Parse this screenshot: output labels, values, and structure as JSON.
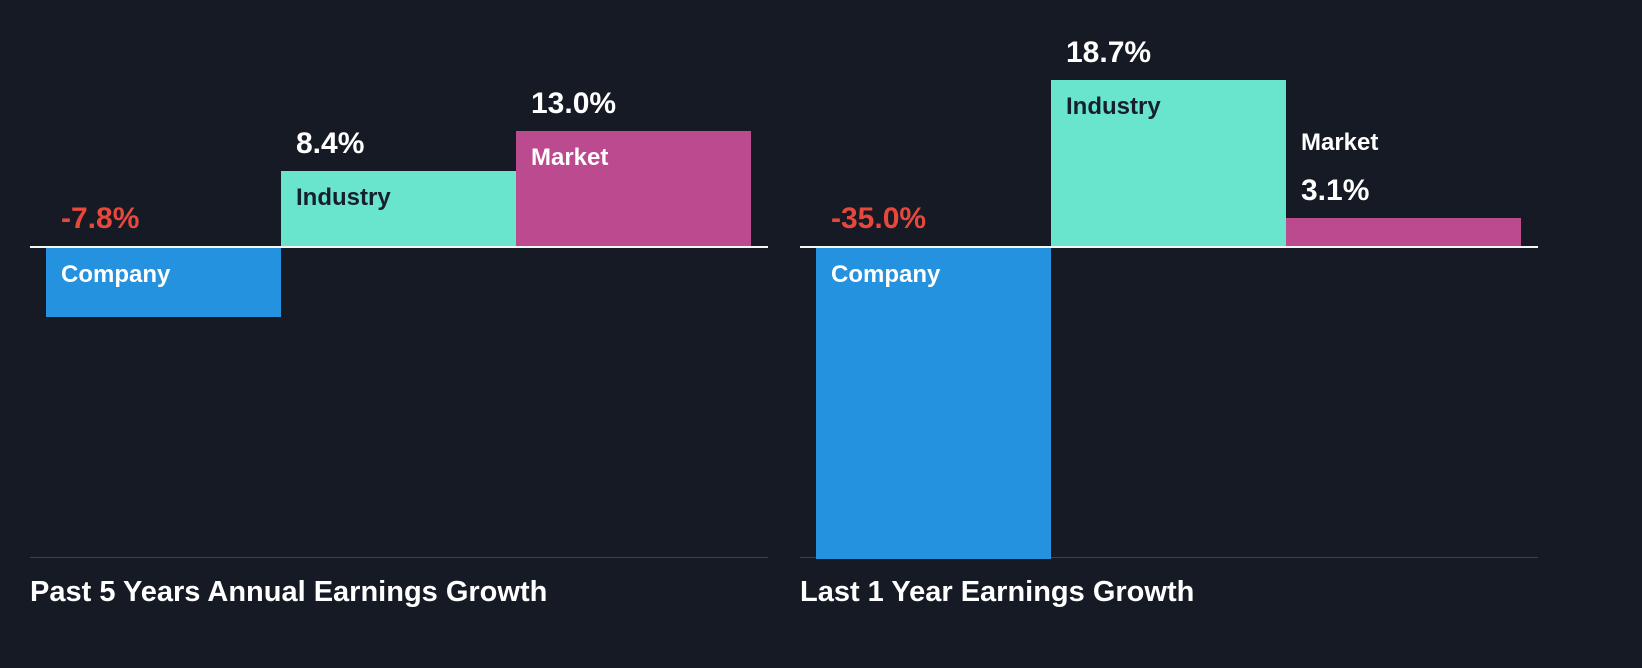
{
  "colors": {
    "background": "#151a24",
    "value_positive": "#ffffff",
    "value_negative": "#e8483c",
    "label_light": "#ffffff",
    "label_dark": "#16202d",
    "zero_line": "#f5f6f8",
    "axis_line": "#3d434e",
    "title_text": "#ffffff"
  },
  "chart_data": [
    {
      "type": "bar",
      "title": "Past 5 Years Annual Earnings Growth",
      "categories": [
        "Company",
        "Industry",
        "Market"
      ],
      "values": [
        -7.8,
        8.4,
        13.0
      ],
      "value_labels": [
        "-7.8%",
        "8.4%",
        "13.0%"
      ],
      "bar_colors": [
        "#2492df",
        "#69e5cd",
        "#bc4a8e"
      ],
      "label_colors": [
        "#ffffff",
        "#16202d",
        "#ffffff"
      ],
      "xlabel": "",
      "ylabel": "",
      "ylim": [
        -35,
        28
      ],
      "grid": false,
      "legend": "none"
    },
    {
      "type": "bar",
      "title": "Last 1 Year Earnings Growth",
      "categories": [
        "Company",
        "Industry",
        "Market"
      ],
      "values": [
        -35.0,
        18.7,
        3.1
      ],
      "value_labels": [
        "-35.0%",
        "18.7%",
        "3.1%"
      ],
      "bar_colors": [
        "#2492df",
        "#69e5cd",
        "#bc4a8e"
      ],
      "label_colors": [
        "#ffffff",
        "#16202d",
        "#ffffff"
      ],
      "xlabel": "",
      "ylabel": "",
      "ylim": [
        -35,
        28
      ],
      "grid": false,
      "legend": "none"
    }
  ]
}
